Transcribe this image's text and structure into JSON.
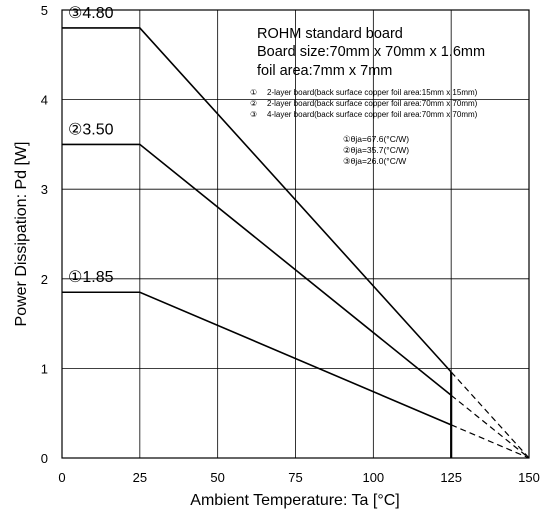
{
  "chart_data": {
    "type": "line",
    "xlabel": "Ambient Temperature: Ta [°C]",
    "ylabel": "Power Dissipation: Pd [W]",
    "xlim": [
      0,
      150
    ],
    "ylim": [
      0,
      5
    ],
    "x_ticks": [
      "0",
      "25",
      "50",
      "75",
      "100",
      "125",
      "150"
    ],
    "y_ticks": [
      "0",
      "1",
      "2",
      "3",
      "4",
      "5"
    ],
    "grid": true,
    "series": [
      {
        "name": "①",
        "callout": "①1.85",
        "points": [
          [
            0,
            1.85
          ],
          [
            25,
            1.85
          ],
          [
            125,
            0.37
          ]
        ],
        "derating_dashed": [
          [
            125,
            0.37
          ],
          [
            150,
            0
          ]
        ]
      },
      {
        "name": "②",
        "callout": "②3.50",
        "points": [
          [
            0,
            3.5
          ],
          [
            25,
            3.5
          ],
          [
            125,
            0.7
          ]
        ],
        "derating_dashed": [
          [
            125,
            0.7
          ],
          [
            150,
            0
          ]
        ]
      },
      {
        "name": "③",
        "callout": "③4.80",
        "points": [
          [
            0,
            4.8
          ],
          [
            25,
            4.8
          ],
          [
            125,
            0.96
          ]
        ],
        "derating_dashed": [
          [
            125,
            0.96
          ],
          [
            150,
            0
          ]
        ]
      }
    ],
    "cutoff_line": {
      "x": 125,
      "y_from": 0,
      "y_to": 0.96
    },
    "notes": {
      "main": [
        "ROHM standard board",
        "Board size:70mm x 70mm x 1.6mm",
        "foil area:7mm x 7mm"
      ],
      "boards": [
        {
          "mark": "①",
          "text": "2-layer board(back surface copper foil area:15mm x 15mm)"
        },
        {
          "mark": "②",
          "text": "2-layer board(back surface copper foil area:70mm x 70mm)"
        },
        {
          "mark": "③",
          "text": "4-layer board(back surface copper foil area:70mm x 70mm)"
        }
      ],
      "theta": [
        "①θja=67.6(°C/W)",
        "②θja=35.7(°C/W)",
        "③θja=26.0(°C/W"
      ]
    }
  }
}
